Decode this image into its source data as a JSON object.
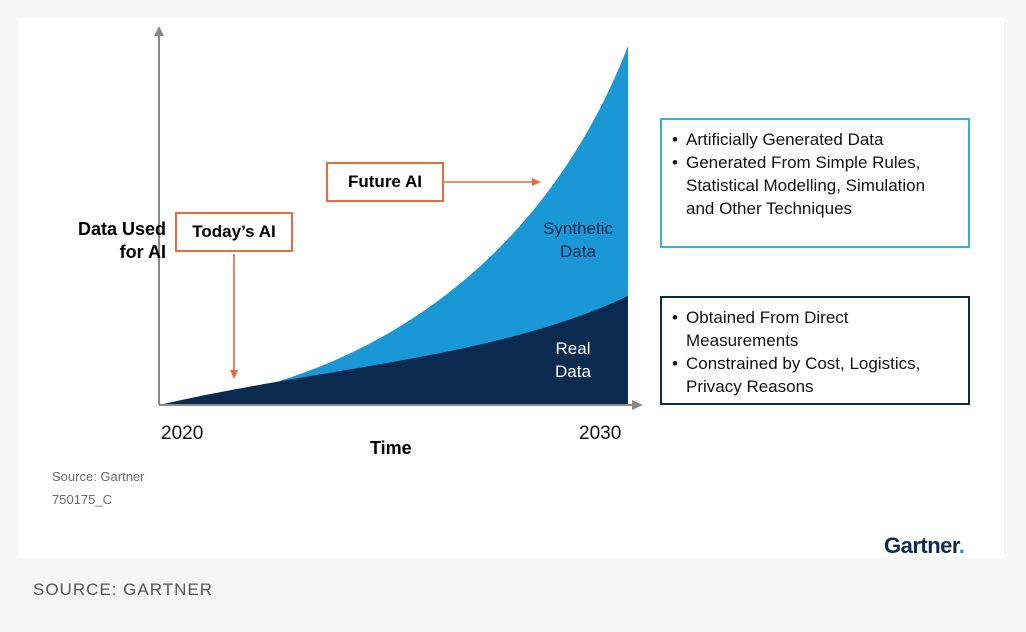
{
  "chart_data": {
    "type": "area",
    "ylabel": "Data Used for AI",
    "xlabel": "Time",
    "x": [
      2020,
      2030
    ],
    "x_tick_labels": [
      "2020",
      "2030"
    ],
    "series": [
      {
        "name": "Real Data",
        "color": "#0b2a4f",
        "shape": "gently rising, ~30% of chart height at 2030"
      },
      {
        "name": "Synthetic Data",
        "color": "#1a97d5",
        "shape": "exponential growth, ~100% of chart height at 2030"
      }
    ],
    "annotations": [
      {
        "text": "Today's AI",
        "color": "#e96b3d"
      },
      {
        "text": "Future AI",
        "color": "#e96b3d"
      }
    ],
    "grid": false,
    "legend_placement": "right"
  },
  "labels": {
    "ylabel_line1": "Data Used",
    "ylabel_line2": "for AI",
    "x_start": "2020",
    "x_end": "2030",
    "xlabel": "Time",
    "today_ai": "Today’s AI",
    "future_ai": "Future AI",
    "synthetic_line1": "Synthetic",
    "synthetic_line2": "Data",
    "real_line1": "Real",
    "real_line2": "Data"
  },
  "legend": {
    "synthetic": {
      "border_color": "#3aaed8",
      "items": [
        "Artificially Generated Data",
        "Generated From Simple Rules, Statistical Modelling, Simulation and Other Techniques"
      ]
    },
    "real": {
      "border_color": "#0b2a4f",
      "items": [
        "Obtained From Direct Measurements",
        "Constrained by Cost, Logistics, Privacy Reasons"
      ]
    }
  },
  "source": {
    "line1": "Source: Gartner",
    "line2": "750175_C"
  },
  "brand": {
    "name": "Gartner",
    "dot": "."
  },
  "footer": "SOURCE: GARTNER"
}
